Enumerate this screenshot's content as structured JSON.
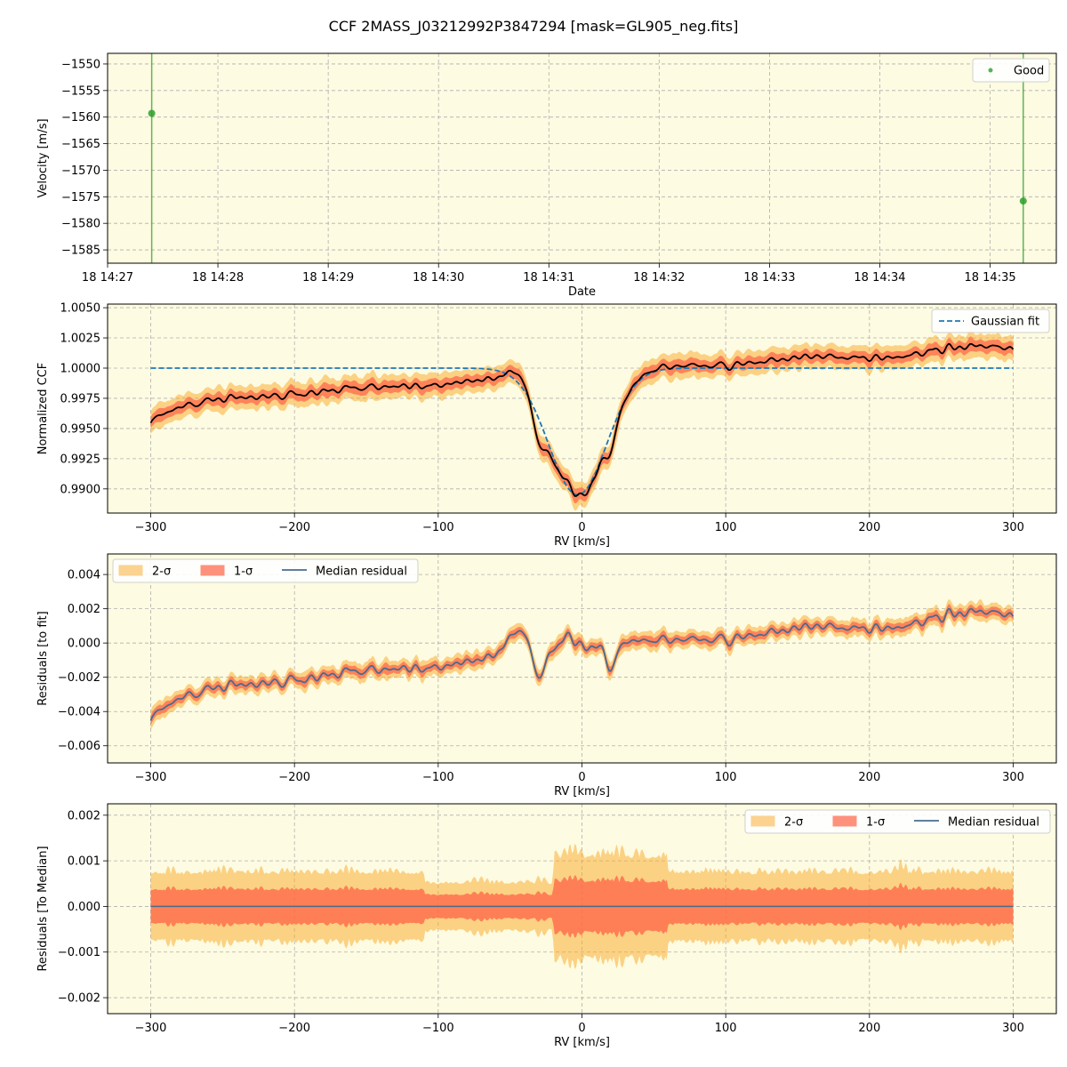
{
  "title": "CCF 2MASS_J03212992P3847294 [mask=GL905_neg.fits]",
  "colors": {
    "background": "#fdfbe1",
    "good": "#2ca02c",
    "fit": "#1f77b4",
    "ccf": "#000000",
    "sigma1": "#ff6347",
    "sigma2": "#f9a825",
    "median": "#4a6b8f",
    "grid": "#b0b0b0"
  },
  "chart_data": [
    {
      "type": "scatter",
      "xlabel": "Date",
      "ylabel": "Velocity [m/s]",
      "xticks": [
        "18 14:27",
        "18 14:28",
        "18 14:29",
        "18 14:30",
        "18 14:31",
        "18 14:32",
        "18 14:33",
        "18 14:34",
        "18 14:35"
      ],
      "xlim_minutes": [
        14.4,
        23.0
      ],
      "ylim": [
        -1587.5,
        -1548
      ],
      "yticks": [
        -1550,
        -1555,
        -1560,
        -1565,
        -1570,
        -1575,
        -1580,
        -1585
      ],
      "legend": {
        "position": "upper right",
        "entries": [
          "Good"
        ]
      },
      "series": [
        {
          "name": "Good",
          "x_minutes": [
            14.8,
            22.7
          ],
          "y": [
            -1559.3,
            -1575.8
          ]
        }
      ]
    },
    {
      "type": "line",
      "xlabel": "RV [km/s]",
      "ylabel": "Normalized CCF",
      "xlim": [
        -330,
        330
      ],
      "ylim": [
        0.988,
        1.0053
      ],
      "xticks": [
        -300,
        -200,
        -100,
        0,
        100,
        200,
        300
      ],
      "yticks": [
        "0.9900",
        "0.9925",
        "0.9950",
        "0.9975",
        "1.0000",
        "1.0025",
        "1.0050"
      ],
      "legend": {
        "position": "upper right",
        "entries": [
          "Gaussian fit"
        ]
      },
      "fit": {
        "center": -3,
        "depth": 0.0105,
        "sigma": 20,
        "baseline": 1.0
      }
    },
    {
      "type": "line",
      "xlabel": "RV [km/s]",
      "ylabel": "Residuals [to fit]",
      "xlim": [
        -330,
        330
      ],
      "ylim": [
        -0.007,
        0.0052
      ],
      "xticks": [
        -300,
        -200,
        -100,
        0,
        100,
        200,
        300
      ],
      "yticks": [
        "0.004",
        "0.002",
        "0.000",
        "−0.002",
        "−0.004",
        "−0.006"
      ],
      "legend": {
        "position": "upper left",
        "entries": [
          "2-σ",
          "1-σ",
          "Median residual"
        ]
      }
    },
    {
      "type": "area",
      "xlabel": "RV [km/s]",
      "ylabel": "Residuals [To Median]",
      "xlim": [
        -330,
        330
      ],
      "ylim": [
        -0.00235,
        0.00225
      ],
      "xticks": [
        -300,
        -200,
        -100,
        0,
        100,
        200,
        300
      ],
      "yticks": [
        "0.002",
        "0.001",
        "0.000",
        "−0.001",
        "−0.002"
      ],
      "legend": {
        "position": "upper right",
        "entries": [
          "2-σ",
          "1-σ",
          "Median residual"
        ]
      }
    }
  ]
}
